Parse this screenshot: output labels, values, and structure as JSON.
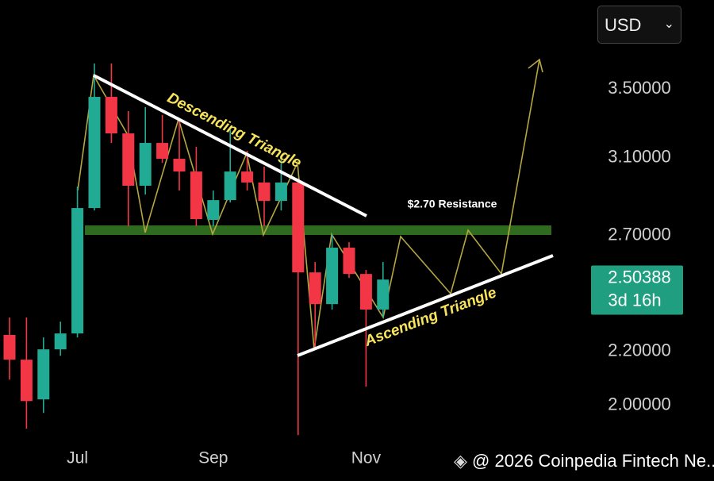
{
  "currency_selector": "USD",
  "watermark": "@ 2026 Coinpedia Fintech Ne...",
  "chart_data": {
    "type": "candlestick",
    "categories": [
      null,
      null,
      null,
      null,
      "Jul",
      null,
      null,
      null,
      null,
      null,
      null,
      null,
      "Sep",
      null,
      null,
      null,
      null,
      null,
      null,
      null,
      null,
      "Nov",
      null
    ],
    "open": [
      2.265,
      2.168,
      2.021,
      2.208,
      2.271,
      2.835,
      3.451,
      3.235,
      2.949,
      3.181,
      3.093,
      3.024,
      2.776,
      2.875,
      3.024,
      2.966,
      2.871,
      2.966,
      2.53,
      2.392,
      2.643,
      2.523,
      2.369
    ],
    "high": [
      2.336,
      2.336,
      2.255,
      2.319,
      2.945,
      3.661,
      3.661,
      3.365,
      3.389,
      3.342,
      3.318,
      3.159,
      2.924,
      3.272,
      3.137,
      3.05,
      3.093,
      2.986,
      2.577,
      2.707,
      2.669,
      2.541,
      2.577
    ],
    "low": [
      2.093,
      1.919,
      1.973,
      2.183,
      2.255,
      2.823,
      3.181,
      2.745,
      2.904,
      3.071,
      2.924,
      2.745,
      2.745,
      2.863,
      2.924,
      2.745,
      2.823,
      1.897,
      2.208,
      2.369,
      2.505,
      2.067,
      2.336
    ],
    "close": [
      2.168,
      2.015,
      2.208,
      2.271,
      2.835,
      3.451,
      3.235,
      2.949,
      3.181,
      3.093,
      3.024,
      2.78,
      2.875,
      3.024,
      2.966,
      2.871,
      2.966,
      2.53,
      2.392,
      2.643,
      2.523,
      2.369,
      2.498
    ],
    "up_color": "#22ab94",
    "down_color": "#f23645",
    "log_scale": true,
    "ylim": [
      1.866,
      4.096
    ],
    "yticks": [
      {
        "value": 3.5,
        "label": "3.50000"
      },
      {
        "value": 3.1,
        "label": "3.10000"
      },
      {
        "value": 2.7,
        "label": "2.70000"
      },
      {
        "value": 2.2,
        "label": "2.20000"
      },
      {
        "value": 2.0,
        "label": "2.00000"
      }
    ],
    "current_price": 2.50388,
    "countdown": "3d 16h",
    "annotations": [
      "Descending Triangle",
      "Ascending Triangle",
      "$2.70 Resistance"
    ]
  }
}
